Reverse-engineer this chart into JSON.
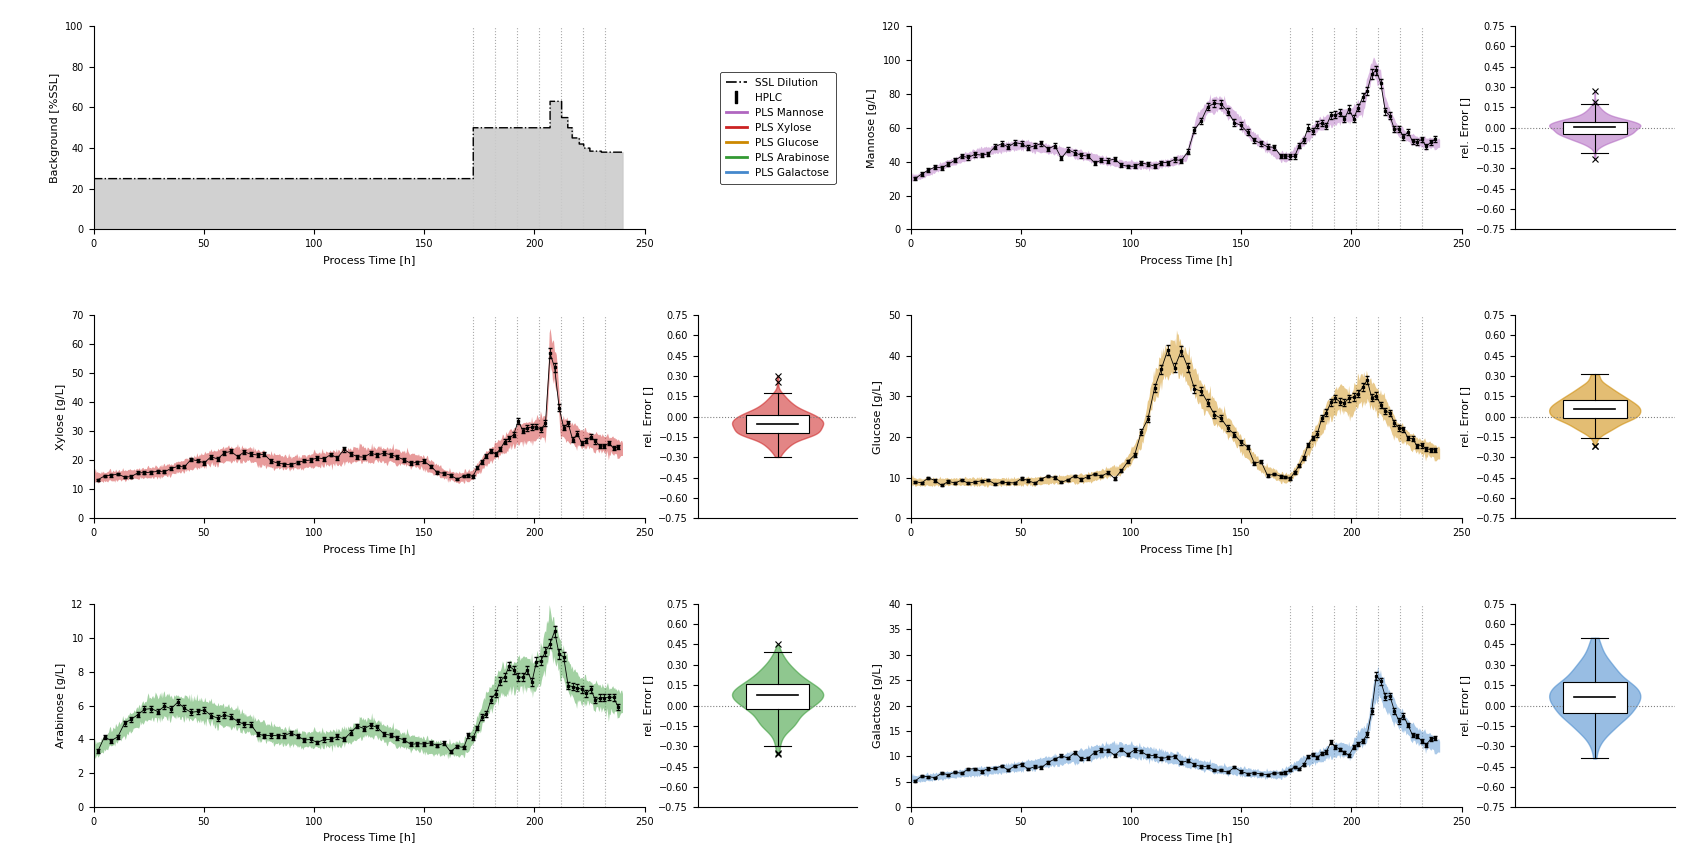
{
  "dashed_lines": [
    172,
    182,
    192,
    202,
    212,
    222,
    232
  ],
  "background_color": "#ffffff",
  "legend_entries": [
    "SSL Dilution",
    "HPLC",
    "PLS Mannose",
    "PLS Xylose",
    "PLS Glucose",
    "PLS Arabinose",
    "PLS Galactose"
  ],
  "colors": {
    "mannose": "#b066c0",
    "xylose": "#cc2222",
    "glucose": "#cc8800",
    "arabinose": "#339933",
    "galactose": "#4488cc",
    "hplc": "#000000",
    "ssl": "#000000"
  },
  "ylabels": [
    "Background [%SSL]",
    "Mannose [g/L]",
    "Xylose [g/L]",
    "Glucose [g/L]",
    "Arabinose [g/L]",
    "Galactose [g/L]"
  ],
  "xlabel": "Process Time [h]",
  "violin_ylabel": "rel. Error []",
  "ylims": {
    "background": [
      0,
      100
    ],
    "mannose": [
      0,
      120
    ],
    "xylose": [
      0,
      70
    ],
    "glucose": [
      0,
      50
    ],
    "arabinose": [
      0,
      12
    ],
    "galactose": [
      0,
      40
    ]
  }
}
